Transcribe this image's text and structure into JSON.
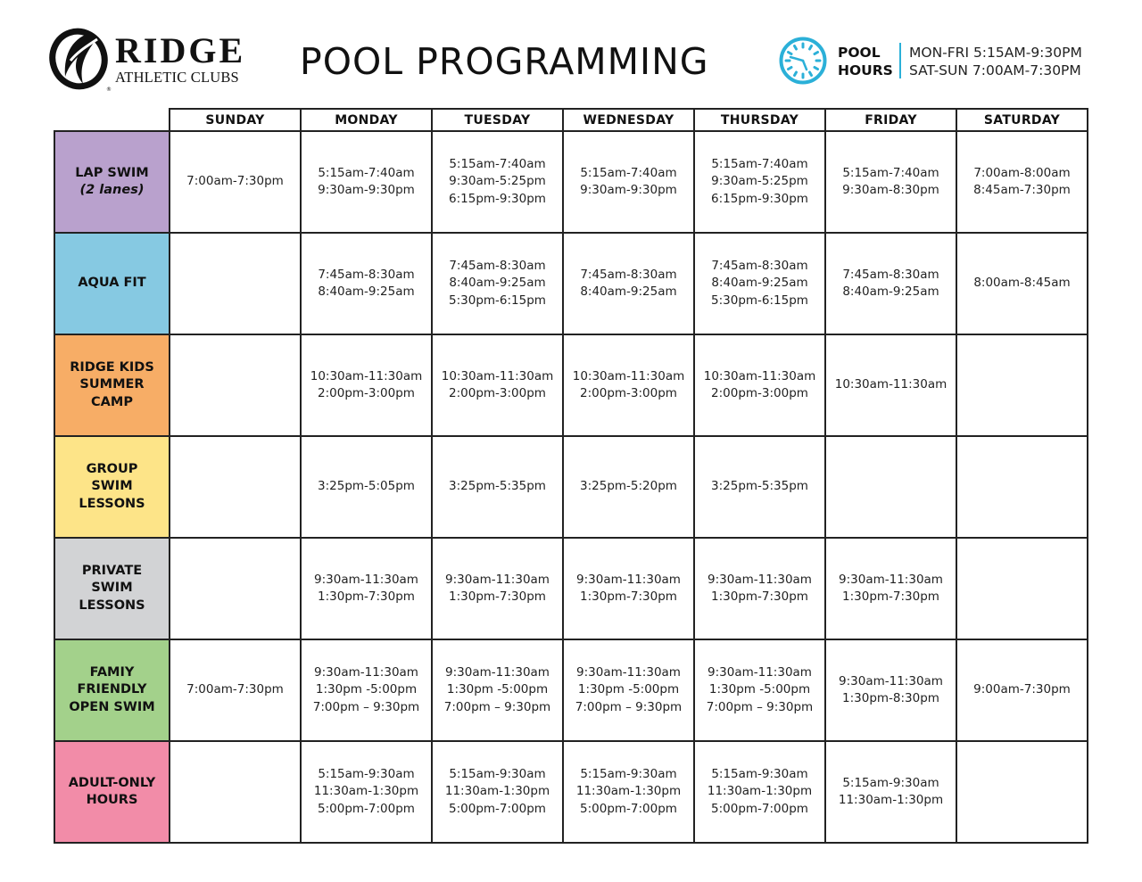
{
  "header": {
    "logo": {
      "name": "RIDGE",
      "subtitle": "ATHLETIC CLUBS",
      "registered": "®"
    },
    "title": "POOL PROGRAMMING",
    "pool_hours": {
      "label_line1": "POOL",
      "label_line2": "HOURS",
      "weekday": "MON-FRI 5:15AM-9:30PM",
      "weekend": "SAT-SUN 7:00AM-7:30PM",
      "icon": "clock-icon",
      "accent_color": "#2bb0d8"
    }
  },
  "schedule": {
    "days": [
      "SUNDAY",
      "MONDAY",
      "TUESDAY",
      "WEDNESDAY",
      "THURSDAY",
      "FRIDAY",
      "SATURDAY"
    ],
    "programs": [
      {
        "name": [
          "LAP SWIM"
        ],
        "sub": "(2 lanes)",
        "color": "#b9a1cd",
        "cells": [
          [
            "7:00am-7:30pm"
          ],
          [
            "5:15am-7:40am",
            "9:30am-9:30pm"
          ],
          [
            "5:15am-7:40am",
            "9:30am-5:25pm",
            "6:15pm-9:30pm"
          ],
          [
            "5:15am-7:40am",
            "9:30am-9:30pm"
          ],
          [
            "5:15am-7:40am",
            "9:30am-5:25pm",
            "6:15pm-9:30pm"
          ],
          [
            "5:15am-7:40am",
            "9:30am-8:30pm"
          ],
          [
            "7:00am-8:00am",
            "8:45am-7:30pm"
          ]
        ]
      },
      {
        "name": [
          "AQUA FIT"
        ],
        "sub": null,
        "color": "#86c9e2",
        "cells": [
          [],
          [
            "7:45am-8:30am",
            "8:40am-9:25am"
          ],
          [
            "7:45am-8:30am",
            "8:40am-9:25am",
            "5:30pm-6:15pm"
          ],
          [
            "7:45am-8:30am",
            "8:40am-9:25am"
          ],
          [
            "7:45am-8:30am",
            "8:40am-9:25am",
            "5:30pm-6:15pm"
          ],
          [
            "7:45am-8:30am",
            "8:40am-9:25am"
          ],
          [
            "8:00am-8:45am"
          ]
        ]
      },
      {
        "name": [
          "RIDGE KIDS",
          "SUMMER",
          "CAMP"
        ],
        "sub": null,
        "color": "#f7ad66",
        "cells": [
          [],
          [
            "10:30am-11:30am",
            "2:00pm-3:00pm"
          ],
          [
            "10:30am-11:30am",
            "2:00pm-3:00pm"
          ],
          [
            "10:30am-11:30am",
            "2:00pm-3:00pm"
          ],
          [
            "10:30am-11:30am",
            "2:00pm-3:00pm"
          ],
          [
            "10:30am-11:30am"
          ],
          []
        ]
      },
      {
        "name": [
          "GROUP",
          "SWIM",
          "LESSONS"
        ],
        "sub": null,
        "color": "#fde488",
        "cells": [
          [],
          [
            "3:25pm-5:05pm"
          ],
          [
            "3:25pm-5:35pm"
          ],
          [
            "3:25pm-5:20pm"
          ],
          [
            "3:25pm-5:35pm"
          ],
          [],
          []
        ]
      },
      {
        "name": [
          "PRIVATE",
          "SWIM",
          "LESSONS"
        ],
        "sub": null,
        "color": "#d2d3d5",
        "cells": [
          [],
          [
            "9:30am-11:30am",
            "1:30pm-7:30pm"
          ],
          [
            "9:30am-11:30am",
            "1:30pm-7:30pm"
          ],
          [
            "9:30am-11:30am",
            "1:30pm-7:30pm"
          ],
          [
            "9:30am-11:30am",
            "1:30pm-7:30pm"
          ],
          [
            "9:30am-11:30am",
            "1:30pm-7:30pm"
          ],
          []
        ]
      },
      {
        "name": [
          "FAMIY",
          "FRIENDLY",
          "OPEN SWIM"
        ],
        "sub": null,
        "color": "#a3d18b",
        "cells": [
          [
            "7:00am-7:30pm"
          ],
          [
            "9:30am-11:30am",
            "1:30pm -5:00pm",
            "7:00pm – 9:30pm"
          ],
          [
            "9:30am-11:30am",
            "1:30pm -5:00pm",
            "7:00pm – 9:30pm"
          ],
          [
            "9:30am-11:30am",
            "1:30pm -5:00pm",
            "7:00pm – 9:30pm"
          ],
          [
            "9:30am-11:30am",
            "1:30pm -5:00pm",
            "7:00pm – 9:30pm"
          ],
          [
            "9:30am-11:30am",
            "1:30pm-8:30pm"
          ],
          [
            "9:00am-7:30pm"
          ]
        ]
      },
      {
        "name": [
          "ADULT-ONLY",
          "HOURS"
        ],
        "sub": null,
        "color": "#f28ca8",
        "cells": [
          [],
          [
            "5:15am-9:30am",
            "11:30am-1:30pm",
            "5:00pm-7:00pm"
          ],
          [
            "5:15am-9:30am",
            "11:30am-1:30pm",
            "5:00pm-7:00pm"
          ],
          [
            "5:15am-9:30am",
            "11:30am-1:30pm",
            "5:00pm-7:00pm"
          ],
          [
            "5:15am-9:30am",
            "11:30am-1:30pm",
            "5:00pm-7:00pm"
          ],
          [
            "5:15am-9:30am",
            "11:30am-1:30pm"
          ],
          []
        ]
      }
    ]
  }
}
